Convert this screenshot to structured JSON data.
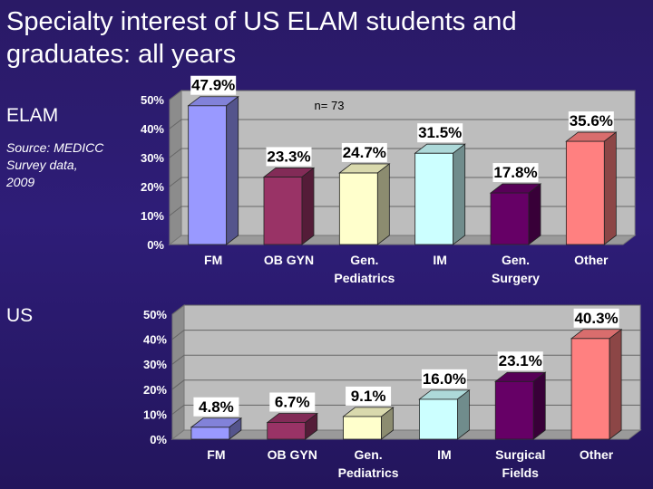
{
  "title_line1": "Specialty interest of US ELAM students and",
  "title_line2": "graduates: all years",
  "elam_label": "ELAM",
  "us_label": "US",
  "source_text": "Source: MEDICC Survey  data, 2009",
  "chart_data": [
    {
      "type": "bar",
      "title": "",
      "note": "n= 73",
      "categories": [
        [
          "FM"
        ],
        [
          "OB GYN"
        ],
        [
          "Gen.",
          "Pediatrics"
        ],
        [
          "IM"
        ],
        [
          "Gen.",
          "Surgery"
        ],
        [
          "Other"
        ]
      ],
      "values": [
        47.9,
        23.3,
        24.7,
        31.5,
        17.8,
        35.6
      ],
      "data_labels": [
        "47.9%",
        "23.3%",
        "24.7%",
        "31.5%",
        "17.8%",
        "35.6%"
      ],
      "yticks": [
        "0%",
        "10%",
        "20%",
        "30%",
        "40%",
        "50%"
      ],
      "ylim": [
        0,
        50
      ],
      "colors": [
        "#9999ff",
        "#993366",
        "#ffffcc",
        "#ccffff",
        "#660066",
        "#ff8080"
      ],
      "grid": true
    },
    {
      "type": "bar",
      "title": "",
      "categories": [
        [
          "FM"
        ],
        [
          "OB GYN"
        ],
        [
          "Gen.",
          "Pediatrics"
        ],
        [
          "IM"
        ],
        [
          "Surgical",
          "Fields"
        ],
        [
          "Other"
        ]
      ],
      "values": [
        4.8,
        6.7,
        9.1,
        16.0,
        23.1,
        40.3
      ],
      "data_labels": [
        "4.8%",
        "6.7%",
        "9.1%",
        "16.0%",
        "23.1%",
        "40.3%"
      ],
      "yticks": [
        "0%",
        "10%",
        "20%",
        "30%",
        "40%",
        "50%"
      ],
      "ylim": [
        0,
        50
      ],
      "colors": [
        "#9999ff",
        "#993366",
        "#ffffcc",
        "#ccffff",
        "#660066",
        "#ff8080"
      ],
      "grid": true
    }
  ]
}
